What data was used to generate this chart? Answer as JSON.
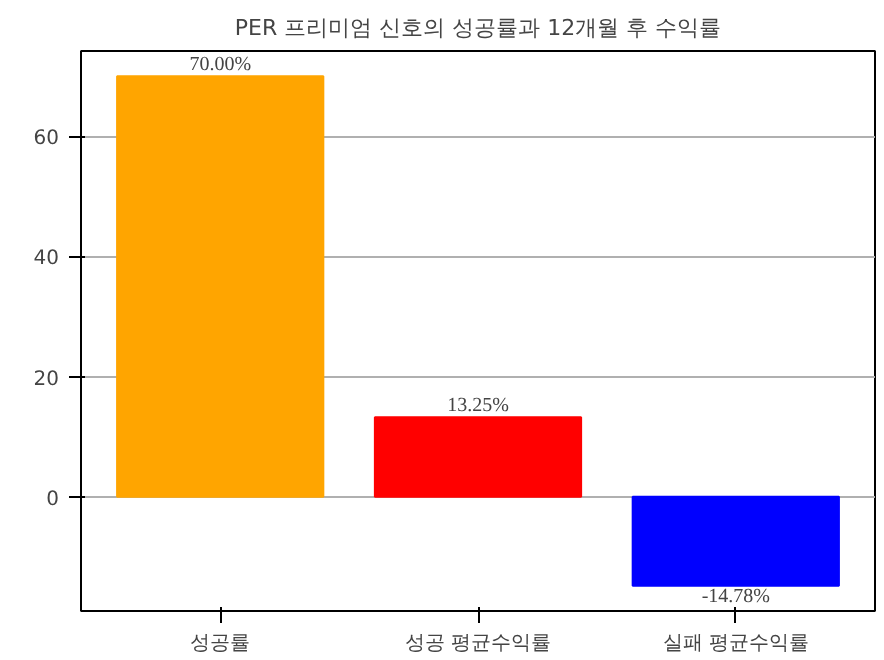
{
  "chart_data": {
    "type": "bar",
    "title": "PER 프리미엄 신호의 성공률과 12개월 후 수익률",
    "categories": [
      "성공률",
      "성공 평균수익률",
      "실패 평균수익률"
    ],
    "values": [
      70,
      13.25,
      -14.78
    ],
    "colors": [
      "#ffa500",
      "#ff0000",
      "#0000ff"
    ],
    "value_labels": [
      "70.00%",
      "13.25%",
      "-14.78%"
    ],
    "ylim": [
      -19,
      74.2
    ],
    "yticks": [
      0,
      20,
      40,
      60
    ],
    "grid": "y"
  }
}
